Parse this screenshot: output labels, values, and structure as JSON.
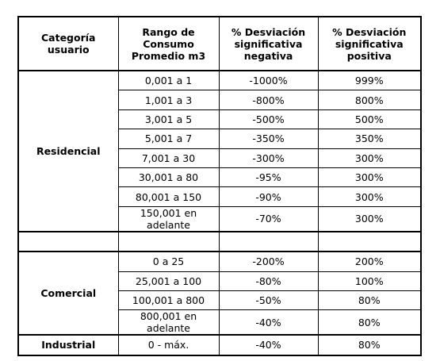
{
  "table": {
    "header": [
      "Categoría usuario",
      "Rango de Consumo Promedio m3",
      "% Desviación significativa negativa",
      "% Desviación significativa positiva"
    ],
    "groups": [
      {
        "category": "Residencial",
        "rows": [
          [
            "0,001 a 1",
            "-1000%",
            "999%"
          ],
          [
            "1,001 a 3",
            "-800%",
            "800%"
          ],
          [
            "3,001 a 5",
            "-500%",
            "500%"
          ],
          [
            "5,001 a 7",
            "-350%",
            "350%"
          ],
          [
            "7,001 a 30",
            "-300%",
            "300%"
          ],
          [
            "30,001 a 80",
            "-95%",
            "300%"
          ],
          [
            "80,001 a 150",
            "-90%",
            "300%"
          ],
          [
            "150,001 en adelante",
            "-70%",
            "300%"
          ]
        ]
      },
      {
        "category": "Comercial",
        "rows": [
          [
            "0 a 25",
            "-200%",
            "200%"
          ],
          [
            "25,001 a 100",
            "-80%",
            "100%"
          ],
          [
            "100,001 a 800",
            "-50%",
            "80%"
          ],
          [
            "800,001 en adelante",
            "-40%",
            "80%"
          ]
        ]
      },
      {
        "category": "Industrial",
        "rows": [
          [
            "0 - máx.",
            "-40%",
            "80%"
          ]
        ]
      }
    ]
  }
}
